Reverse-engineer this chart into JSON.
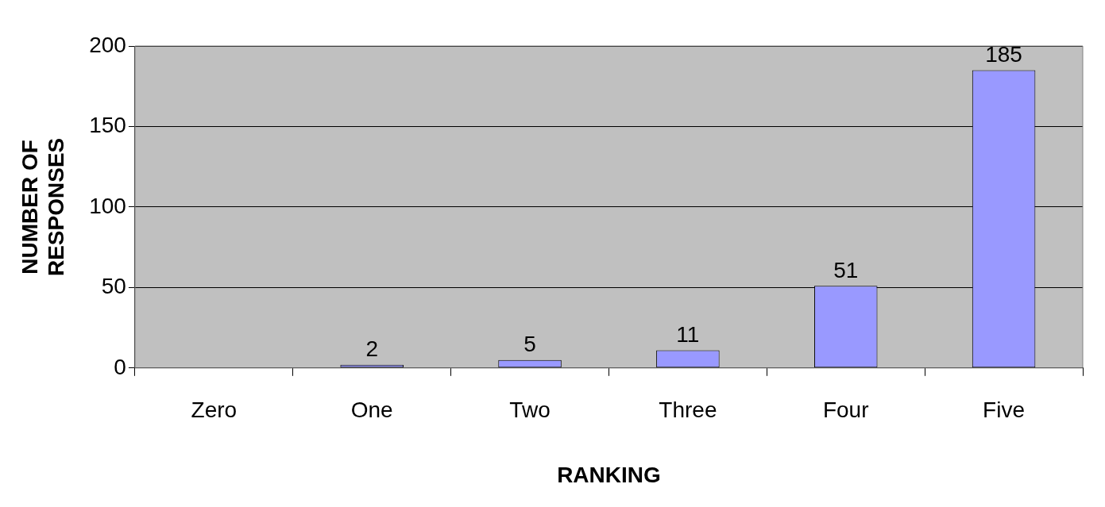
{
  "chart_data": {
    "type": "bar",
    "xlabel": "RANKING",
    "ylabel": "NUMBER OF RESPONSES",
    "categories": [
      "Zero",
      "One",
      "Two",
      "Three",
      "Four",
      "Five"
    ],
    "values": [
      0,
      2,
      5,
      11,
      51,
      185
    ],
    "value_labels": [
      null,
      "2",
      "5",
      "11",
      "51",
      "185"
    ],
    "color": "#9999ff",
    "ylim": [
      0,
      200
    ],
    "yticks": [
      0,
      50,
      100,
      150,
      200
    ],
    "grid": "y",
    "legend": false
  }
}
